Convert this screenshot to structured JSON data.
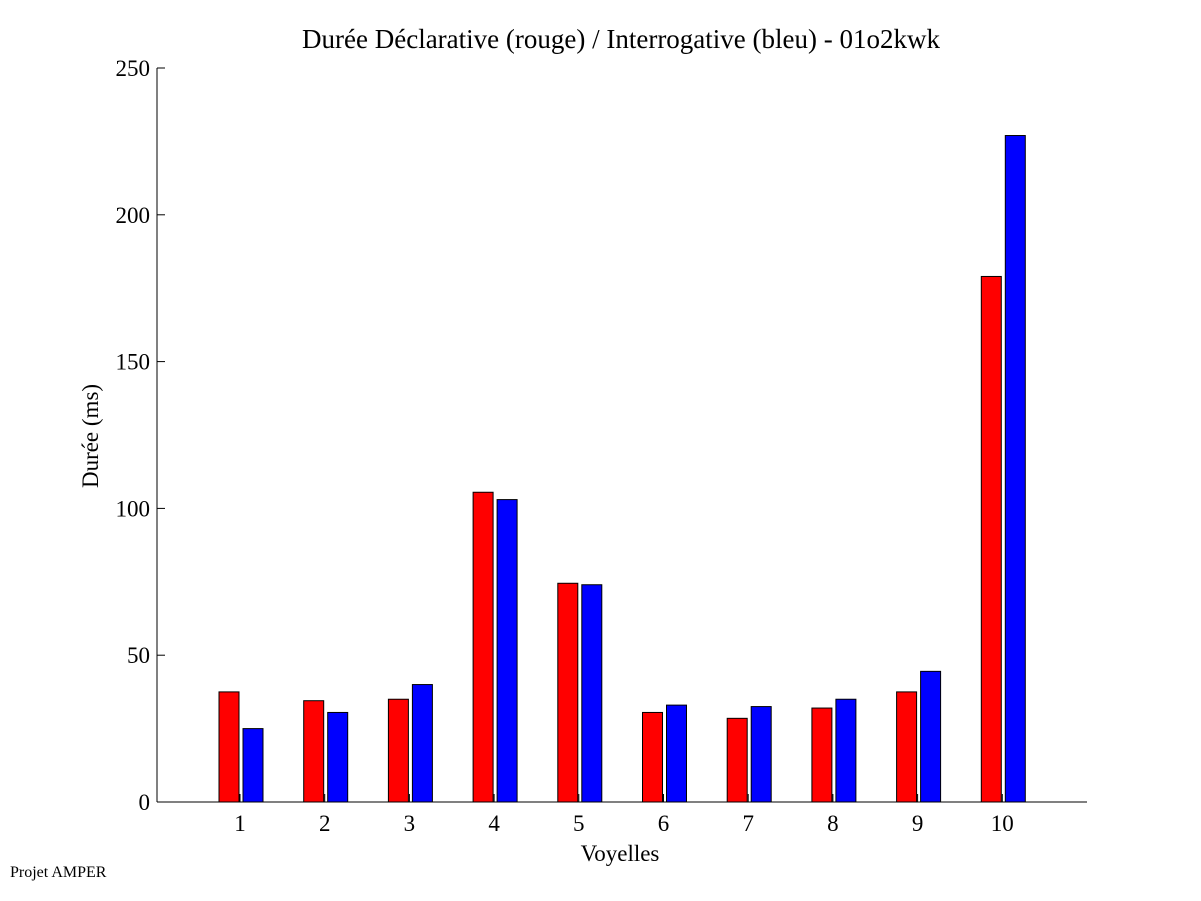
{
  "footer": {
    "text": "Projet AMPER"
  },
  "chart_data": {
    "type": "bar",
    "title": "Durée Déclarative (rouge) / Interrogative (bleu) - 01o2kwk",
    "xlabel": "Voyelles",
    "ylabel": "Durée (ms)",
    "categories": [
      "1",
      "2",
      "3",
      "4",
      "5",
      "6",
      "7",
      "8",
      "9",
      "10"
    ],
    "ylim": [
      0,
      250
    ],
    "yticks": [
      0,
      50,
      100,
      150,
      200,
      250
    ],
    "grid": false,
    "legend": "none",
    "series": [
      {
        "color": "#ff0000",
        "values": [
          37.5,
          34.5,
          35,
          105.5,
          74.5,
          30.5,
          28.5,
          32,
          37.5,
          179
        ]
      },
      {
        "color": "#0000ff",
        "values": [
          25,
          30.5,
          40,
          103,
          74,
          33,
          32.5,
          35,
          44.5,
          227
        ]
      }
    ]
  }
}
